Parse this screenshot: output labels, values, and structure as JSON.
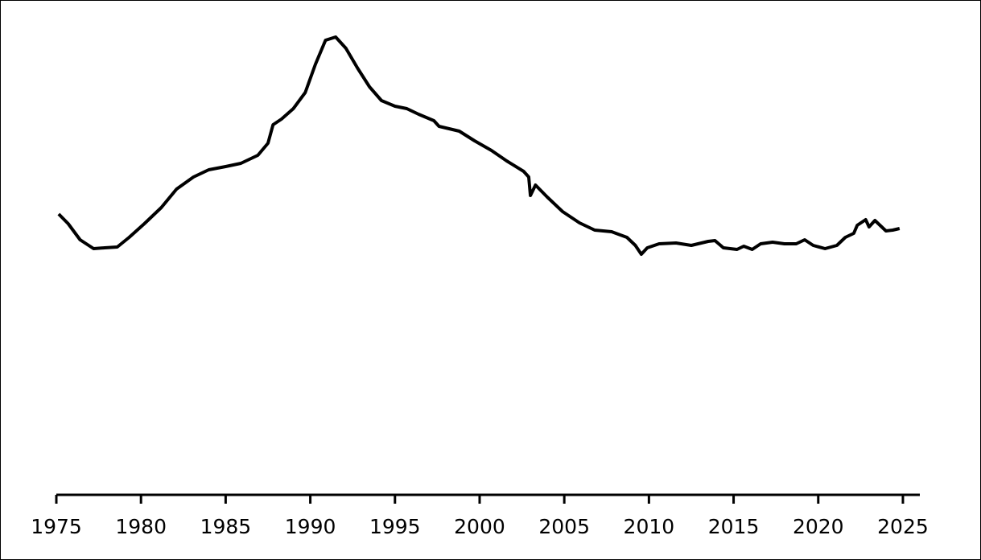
{
  "chart_data": {
    "type": "line",
    "x": [
      1975.14,
      1975.7,
      1976.4,
      1977.2,
      1977.85,
      1978.6,
      1979.3,
      1980.2,
      1981.2,
      1982.1,
      1983.1,
      1984.0,
      1985.0,
      1985.9,
      1986.9,
      1987.5,
      1987.8,
      1988.3,
      1989.0,
      1989.7,
      1990.3,
      1990.9,
      1991.5,
      1992.1,
      1992.8,
      1993.5,
      1994.2,
      1995.0,
      1995.7,
      1996.4,
      1997.3,
      1997.6,
      1998.8,
      1999.7,
      2000.7,
      2001.6,
      2002.6,
      2002.9,
      2003.0,
      2003.3,
      2004.0,
      2004.9,
      2005.9,
      2006.8,
      2007.8,
      2008.7,
      2009.2,
      2009.55,
      2009.9,
      2010.6,
      2011.6,
      2012.5,
      2013.5,
      2013.9,
      2014.4,
      2015.2,
      2015.6,
      2016.1,
      2016.6,
      2017.3,
      2018.0,
      2018.7,
      2019.2,
      2019.7,
      2020.4,
      2021.1,
      2021.6,
      2022.1,
      2022.3,
      2022.8,
      2023.0,
      2023.35,
      2024.0,
      2024.4,
      2024.8
    ],
    "series": [
      {
        "color": "#000000",
        "values": [
          349,
          337,
          317,
          306,
          307,
          308,
          320,
          337,
          357,
          380,
          395,
          404,
          408,
          412,
          422,
          437,
          460,
          467,
          480,
          500,
          535,
          565,
          569,
          555,
          530,
          507,
          490,
          483,
          480,
          473,
          465,
          458,
          452,
          440,
          428,
          415,
          402,
          395,
          372,
          385,
          370,
          352,
          338,
          329,
          327,
          320,
          310,
          299,
          307,
          312,
          313,
          310,
          315,
          316,
          307,
          305,
          309,
          305,
          312,
          314,
          312,
          312,
          317,
          310,
          306,
          310,
          320,
          325,
          335,
          342,
          333,
          341,
          328,
          329,
          331
        ]
      }
    ],
    "xlim": [
      1975,
      2026
    ],
    "xticks": [
      1975,
      1980,
      1985,
      1990,
      1995,
      2000,
      2005,
      2010,
      2015,
      2020,
      2025
    ],
    "ylim": [
      0,
      615
    ]
  }
}
